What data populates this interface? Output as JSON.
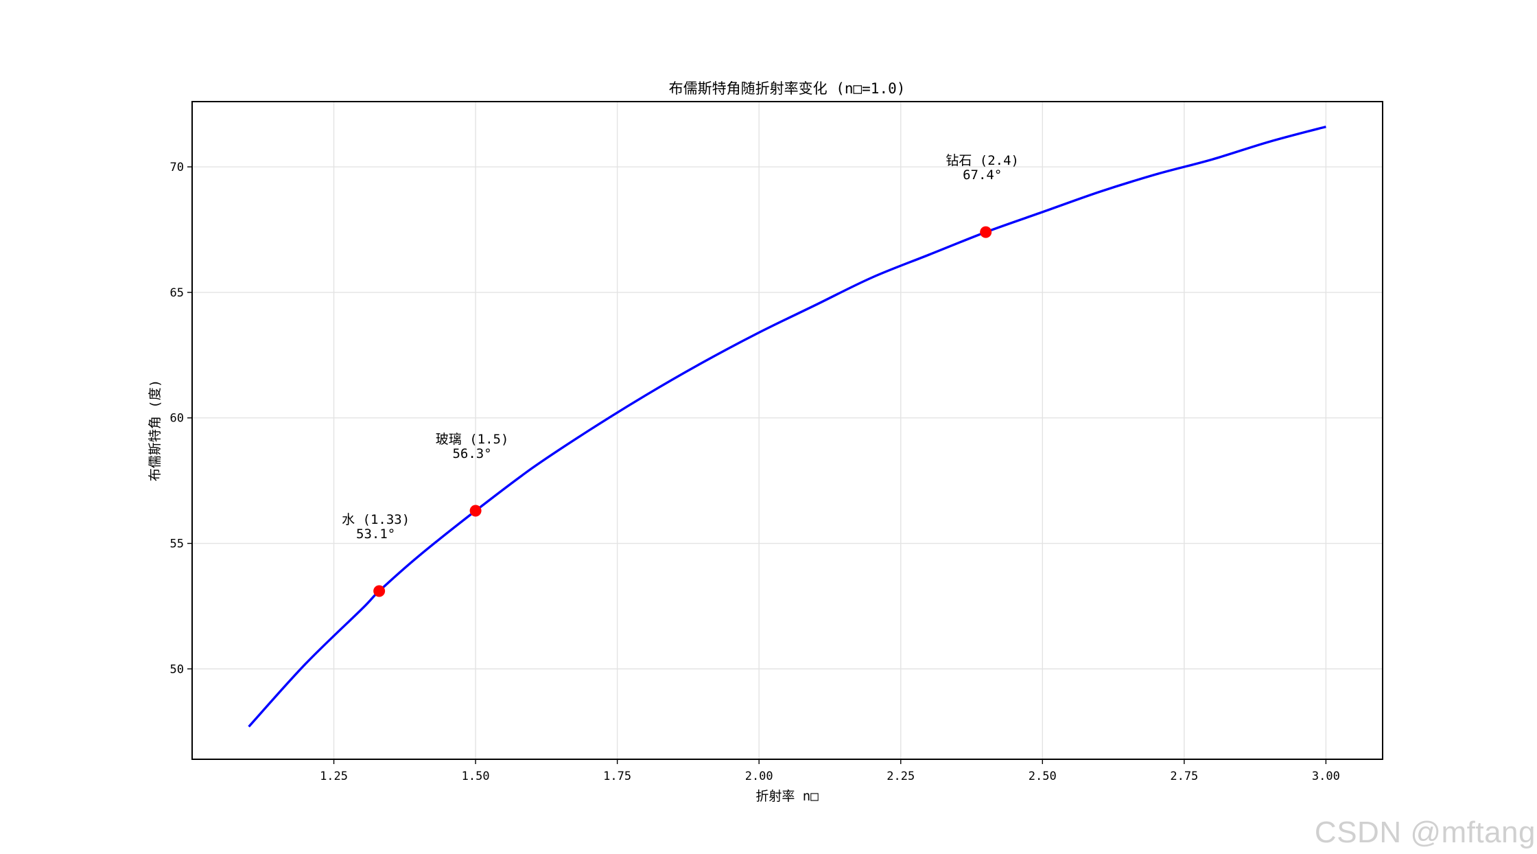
{
  "chart_data": {
    "type": "line",
    "title": "布儒斯特角随折射率变化 (n□=1.0)",
    "xlabel": "折射率 n□",
    "ylabel": "布儒斯特角 (度)",
    "xlim": [
      1.0,
      3.1
    ],
    "ylim": [
      46.4,
      72.6
    ],
    "x_ticks": [
      1.25,
      1.5,
      1.75,
      2.0,
      2.25,
      2.5,
      2.75,
      3.0
    ],
    "x_tick_labels": [
      "1.25",
      "1.50",
      "1.75",
      "2.00",
      "2.25",
      "2.50",
      "2.75",
      "3.00"
    ],
    "y_ticks": [
      50,
      55,
      60,
      65,
      70
    ],
    "y_tick_labels": [
      "50",
      "55",
      "60",
      "65",
      "70"
    ],
    "grid": true,
    "curve": {
      "color": "#0000ff",
      "x": [
        1.1,
        1.2,
        1.3,
        1.33,
        1.4,
        1.5,
        1.6,
        1.7,
        1.8,
        1.9,
        2.0,
        2.1,
        2.2,
        2.3,
        2.4,
        2.5,
        2.6,
        2.7,
        2.8,
        2.9,
        3.0
      ],
      "y": [
        47.7,
        50.2,
        52.4,
        53.1,
        54.5,
        56.3,
        58.0,
        59.5,
        60.9,
        62.2,
        63.4,
        64.5,
        65.6,
        66.5,
        67.4,
        68.2,
        69.0,
        69.7,
        70.3,
        71.0,
        71.6
      ]
    },
    "points": [
      {
        "x": 1.33,
        "y": 53.1,
        "label": "水 (1.33)",
        "value_label": "53.1°"
      },
      {
        "x": 1.5,
        "y": 56.3,
        "label": "玻璃 (1.5)",
        "value_label": "56.3°"
      },
      {
        "x": 2.4,
        "y": 67.4,
        "label": "钻石 (2.4)",
        "value_label": "67.4°"
      }
    ],
    "point_color": "#ff0000"
  },
  "watermark": "CSDN @mftang"
}
